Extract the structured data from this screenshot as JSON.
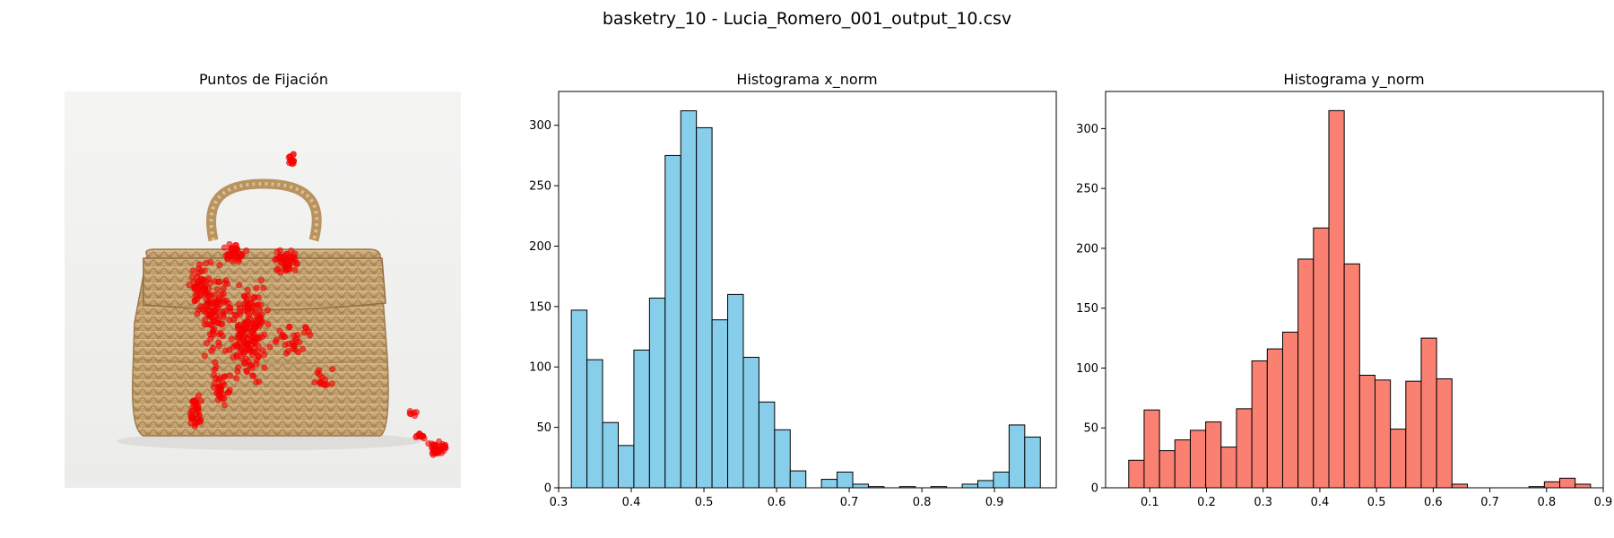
{
  "figure": {
    "title": "basketry_10 - Lucia_Romero_001_output_10.csv"
  },
  "chart_data": [
    {
      "type": "scatter",
      "title": "Puntos de Fijación",
      "background": "photo of a woven basketry handbag",
      "point_color": "#ff0000",
      "axes": "off",
      "xlim": [
        0,
        1
      ],
      "ylim": [
        0,
        1
      ]
    },
    {
      "type": "bar",
      "title": "Histograma x_norm",
      "color": "#87ceeb",
      "edgecolor": "#000000",
      "bin_start": 0.3175,
      "bin_width": 0.02152,
      "values": [
        147,
        106,
        54,
        35,
        114,
        157,
        275,
        312,
        298,
        139,
        160,
        108,
        71,
        48,
        14,
        0,
        7,
        13,
        3,
        1,
        0,
        1,
        0,
        1,
        0,
        3,
        6,
        13,
        52,
        42
      ],
      "xlim": [
        0.3,
        0.985
      ],
      "ylim": [
        0,
        328
      ],
      "xticks": [
        0.3,
        0.4,
        0.5,
        0.6,
        0.7,
        0.8,
        0.9
      ],
      "xtick_labels": [
        "0.3",
        "0.4",
        "0.5",
        "0.6",
        "0.7",
        "0.8",
        "0.9"
      ],
      "yticks": [
        0,
        50,
        100,
        150,
        200,
        250,
        300
      ],
      "ytick_labels": [
        "0",
        "50",
        "100",
        "150",
        "200",
        "250",
        "300"
      ]
    },
    {
      "type": "bar",
      "title": "Histograma y_norm",
      "color": "#fa8072",
      "edgecolor": "#000000",
      "bin_start": 0.0628,
      "bin_width": 0.02716,
      "values": [
        23,
        65,
        31,
        40,
        48,
        55,
        34,
        66,
        106,
        116,
        130,
        191,
        217,
        315,
        187,
        94,
        90,
        49,
        89,
        125,
        91,
        3,
        0,
        0,
        0,
        0,
        1,
        5,
        8,
        3
      ],
      "xlim": [
        0.022,
        0.9
      ],
      "ylim": [
        0,
        331
      ],
      "xticks": [
        0.1,
        0.2,
        0.3,
        0.4,
        0.5,
        0.6,
        0.7,
        0.8,
        0.9
      ],
      "xtick_labels": [
        "0.1",
        "0.2",
        "0.3",
        "0.4",
        "0.5",
        "0.6",
        "0.7",
        "0.8",
        "0.9"
      ],
      "yticks": [
        0,
        50,
        100,
        150,
        200,
        250,
        300
      ],
      "ytick_labels": [
        "0",
        "50",
        "100",
        "150",
        "200",
        "250",
        "300"
      ]
    }
  ]
}
